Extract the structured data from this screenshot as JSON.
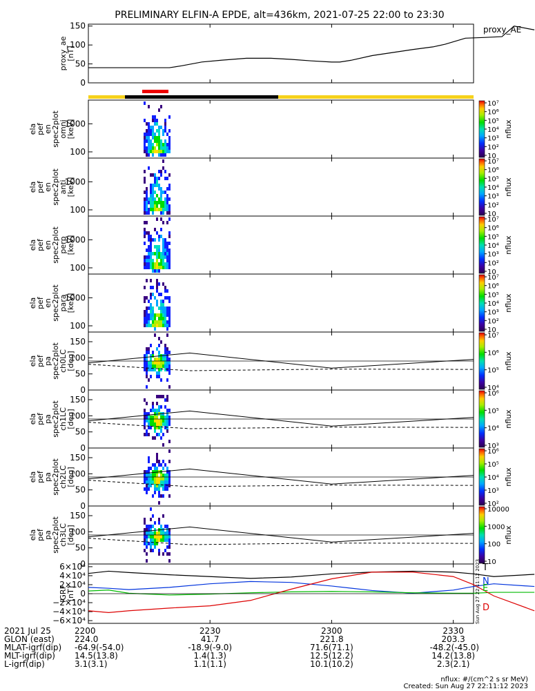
{
  "title": "PRELIMINARY ELFIN-A EPDE, alt=436km, 2021-07-25 22:00 to 23:30",
  "colors": {
    "sunlight": "#f6d21c",
    "eclipse": "#000000",
    "science": "#ee0000",
    "T": "#000000",
    "N": "#0033dd",
    "E": "#00bb00",
    "D": "#dd0000"
  },
  "chart_data": [
    {
      "name": "proxy_AE",
      "type": "line",
      "ylabel": "proxy_ae\n[nT]",
      "legend": "proxy_AE",
      "ylim": [
        0,
        155
      ],
      "yticks": [
        "0",
        "50",
        "100",
        "150"
      ],
      "x_minutes": [
        0,
        6,
        10,
        15,
        20,
        23,
        28,
        33,
        39,
        45,
        50,
        55,
        60,
        62,
        65,
        70,
        75,
        80,
        85,
        88,
        93,
        98,
        102,
        105,
        110
      ],
      "values": [
        40,
        40,
        40,
        40,
        40,
        45,
        55,
        60,
        65,
        65,
        62,
        58,
        55,
        55,
        60,
        72,
        80,
        88,
        95,
        102,
        118,
        120,
        122,
        150,
        140
      ]
    },
    {
      "name": "ela_pef_en_spec2plot_omni",
      "type": "heatmap",
      "ylabel": "ela\npef\nen\nspec2plot\nomni\n[keV]",
      "ylog": true,
      "ylim": [
        60,
        7000
      ],
      "yticks": [
        "100",
        "1000"
      ],
      "colorbar": {
        "title": "nflux",
        "range": [
          10,
          10000000
        ],
        "ticks": [
          "10",
          "10²",
          "10³",
          "10⁴",
          "10⁵",
          "10⁶",
          "10⁷"
        ]
      }
    },
    {
      "name": "ela_pef_en_spec2plot_anti",
      "type": "heatmap",
      "ylabel": "ela\npef\nen\nspec2plot\nanti\n[keV]",
      "ylog": true,
      "ylim": [
        60,
        7000
      ],
      "yticks": [
        "100",
        "1000"
      ],
      "colorbar": {
        "title": "nflux",
        "range": [
          10,
          10000000
        ],
        "ticks": [
          "10",
          "10²",
          "10³",
          "10⁴",
          "10⁵",
          "10⁶",
          "10⁷"
        ]
      }
    },
    {
      "name": "ela_pef_en_spec2plot_perp",
      "type": "heatmap",
      "ylabel": "ela\npef\nen\nspec2plot\nperp\n[keV]",
      "ylog": true,
      "ylim": [
        60,
        7000
      ],
      "yticks": [
        "100",
        "1000"
      ],
      "colorbar": {
        "title": "nflux",
        "range": [
          10,
          10000000
        ],
        "ticks": [
          "10",
          "10²",
          "10³",
          "10⁴",
          "10⁵",
          "10⁶",
          "10⁷"
        ]
      }
    },
    {
      "name": "ela_pef_en_spec2plot_para",
      "type": "heatmap",
      "ylabel": "ela\npef\nen\nspec2plot\npara\n[keV]",
      "ylog": true,
      "ylim": [
        60,
        7000
      ],
      "yticks": [
        "100",
        "1000"
      ],
      "colorbar": {
        "title": "nflux",
        "range": [
          10,
          10000000
        ],
        "ticks": [
          "10",
          "10²",
          "10³",
          "10⁴",
          "10⁵",
          "10⁶",
          "10⁷"
        ]
      }
    },
    {
      "name": "ela_pef_pa_spec2plot_ch0LC",
      "type": "heatmap",
      "ylabel": "ela\npef\npa\nspec2plot\nch0LC\n[deg]",
      "ylim": [
        0,
        180
      ],
      "yticks": [
        "0",
        "50",
        "100",
        "150"
      ],
      "colorbar": {
        "title": "nflux",
        "range": [
          1000,
          10000000
        ],
        "ticks": [
          "10⁴",
          "10⁵",
          "10⁶",
          "10⁷"
        ]
      }
    },
    {
      "name": "ela_pef_pa_spec2plot_ch1LC",
      "type": "heatmap",
      "ylabel": "ela\npef\npa\nspec2plot\nch1LC\n[deg]",
      "ylim": [
        0,
        180
      ],
      "yticks": [
        "0",
        "50",
        "100",
        "150"
      ],
      "colorbar": {
        "title": "nflux",
        "range": [
          100,
          10000000
        ],
        "ticks": [
          "10³",
          "10⁴",
          "10⁵",
          "10⁶"
        ]
      }
    },
    {
      "name": "ela_pef_pa_spec2plot_ch2LC",
      "type": "heatmap",
      "ylabel": "ela\npef\npa\nspec2plot\nch2LC\n[deg]",
      "ylim": [
        0,
        180
      ],
      "yticks": [
        "0",
        "50",
        "100",
        "150"
      ],
      "colorbar": {
        "title": "nflux",
        "range": [
          10,
          1000000
        ],
        "ticks": [
          "10²",
          "10³",
          "10⁴",
          "10⁵",
          "10⁶"
        ]
      }
    },
    {
      "name": "ela_pef_pa_spec2plot_ch3LC",
      "type": "heatmap",
      "ylabel": "ela\npef\npa\nspec2plot\nch3LC\n[deg]",
      "ylim": [
        0,
        180
      ],
      "yticks": [
        "0",
        "50",
        "100",
        "150"
      ],
      "colorbar": {
        "title": "nflux",
        "range": [
          10,
          10000
        ],
        "ticks": [
          "10",
          "100",
          "1000",
          "10000"
        ]
      }
    },
    {
      "name": "IGRF",
      "type": "line",
      "ylabel": "IGRF\n[nT]",
      "ylim": [
        -66000,
        66000
      ],
      "yticks": [
        "−6×10⁴",
        "−4×10⁴",
        "−2×10⁴",
        "0",
        "2×10⁴",
        "4×10⁴",
        "6×10⁴"
      ],
      "x_minutes": [
        0,
        5,
        10,
        20,
        30,
        40,
        50,
        60,
        70,
        80,
        90,
        95,
        100,
        110
      ],
      "series": [
        {
          "name": "T",
          "values": [
            45000,
            50000,
            47000,
            42000,
            38000,
            34000,
            37000,
            44000,
            48000,
            50000,
            48000,
            44000,
            38000,
            43000
          ]
        },
        {
          "name": "N",
          "values": [
            14000,
            12000,
            9000,
            14000,
            22000,
            27000,
            25000,
            17000,
            7000,
            1000,
            8000,
            16000,
            22000,
            16000
          ]
        },
        {
          "name": "E",
          "values": [
            6000,
            8000,
            1000,
            -3000,
            -1000,
            2000,
            4000,
            5000,
            4000,
            2000,
            1000,
            1000,
            3000,
            3000
          ]
        },
        {
          "name": "D",
          "values": [
            -38000,
            -42000,
            -38000,
            -32000,
            -27000,
            -15000,
            10000,
            33000,
            48000,
            48000,
            38000,
            20000,
            -5000,
            -38000
          ]
        }
      ]
    }
  ],
  "x_axis": {
    "tick_minutes": [
      0,
      30,
      60,
      90
    ],
    "rows": [
      {
        "label": "2021 Jul 25",
        "values": [
          "2200",
          "2230",
          "2300",
          "2330"
        ]
      },
      {
        "label": "GLON (east)",
        "values": [
          "224.0",
          "41.7",
          "221.8",
          "203.3"
        ]
      },
      {
        "label": "MLAT-igrf(dip)",
        "values": [
          "-64.9(-54.0)",
          "-18.9(-9.0)",
          "71.6(71.1)",
          "-48.2(-45.0)"
        ]
      },
      {
        "label": "MLT-igrf(dip)",
        "values": [
          "14.5(13.8)",
          "1.4(1.3)",
          "12.5(12.2)",
          "14.2(13.8)"
        ]
      },
      {
        "label": "L-igrf(dip)",
        "values": [
          "3.1(3.1)",
          "1.1(1.1)",
          "10.1(10.2)",
          "2.3(2.1)"
        ]
      }
    ]
  },
  "footer": {
    "units": "nflux: #/(cm^2 s sr MeV)",
    "created": "Created: Sun Aug 27 22:11:12 2023",
    "vertical_stamp": "Sun Aug 27 22:11:12 2023"
  }
}
